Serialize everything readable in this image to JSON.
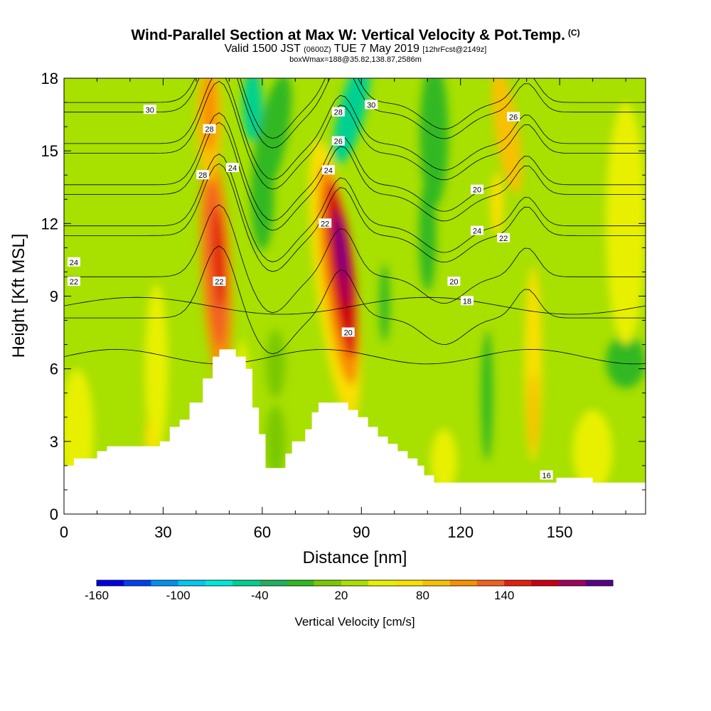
{
  "titles": {
    "main": "Wind-Parallel Section at Max W: Vertical Velocity & Pot.Temp.",
    "main_note": "(C)",
    "valid_a": "Valid 1500 JST",
    "valid_b": "(0600Z)",
    "valid_c": "TUE 7 May 2019",
    "valid_d": "[12hrFcst@2149z]",
    "box": "boxWmax=188@35.82,138.87,2586m"
  },
  "colorbar": {
    "label": "Vertical Velocity [cm/s]",
    "colors": [
      "#0000e0",
      "#0040f0",
      "#0090f0",
      "#00c8f0",
      "#00e8d8",
      "#00d090",
      "#20b060",
      "#30b820",
      "#7ac800",
      "#a8e000",
      "#e8f000",
      "#f8e000",
      "#f8c000",
      "#f89000",
      "#f06020",
      "#e02010",
      "#c80010",
      "#a00060",
      "#5a008a"
    ],
    "tick_labels": [
      "-160",
      "-100",
      "-40",
      "20",
      "80",
      "140"
    ]
  },
  "chart_data": {
    "type": "heatmap",
    "xlabel": "Distance [nm]",
    "ylabel": "Height [Kft MSL]",
    "xlim": [
      0,
      176
    ],
    "ylim": [
      0,
      18
    ],
    "xticks": [
      0,
      30,
      60,
      90,
      120,
      150
    ],
    "yticks": [
      0,
      3,
      6,
      9,
      12,
      15,
      18
    ],
    "terrain": [
      [
        0,
        2.0
      ],
      [
        3,
        2.3
      ],
      [
        10,
        2.6
      ],
      [
        13,
        2.8
      ],
      [
        29,
        3.0
      ],
      [
        32,
        3.6
      ],
      [
        35,
        3.9
      ],
      [
        38,
        4.6
      ],
      [
        42,
        5.6
      ],
      [
        45,
        6.5
      ],
      [
        47,
        6.8
      ],
      [
        52,
        6.5
      ],
      [
        55,
        6.0
      ],
      [
        57,
        4.4
      ],
      [
        59,
        3.3
      ],
      [
        61,
        1.9
      ],
      [
        64,
        1.9
      ],
      [
        67,
        2.5
      ],
      [
        69,
        3.0
      ],
      [
        73,
        3.5
      ],
      [
        75,
        4.2
      ],
      [
        77,
        4.6
      ],
      [
        83,
        4.6
      ],
      [
        86,
        4.3
      ],
      [
        89,
        4.0
      ],
      [
        92,
        3.6
      ],
      [
        95,
        3.2
      ],
      [
        98,
        2.9
      ],
      [
        101,
        2.6
      ],
      [
        104,
        2.3
      ],
      [
        107,
        2.0
      ],
      [
        109,
        1.6
      ],
      [
        112,
        1.3
      ],
      [
        140,
        1.3
      ],
      [
        149,
        1.5
      ],
      [
        157,
        1.5
      ],
      [
        160,
        1.3
      ],
      [
        176,
        1.3
      ]
    ],
    "theta_contours": [
      {
        "level": 16,
        "labels": [
          {
            "x": 146,
            "y": 1.6
          }
        ]
      },
      {
        "level": 18,
        "labels": [
          {
            "x": 122,
            "y": 8.8
          }
        ]
      },
      {
        "level": 20,
        "labels": [
          {
            "x": 86,
            "y": 7.5
          },
          {
            "x": 118,
            "y": 9.6
          },
          {
            "x": 125,
            "y": 13.4
          }
        ]
      },
      {
        "level": 22,
        "labels": [
          {
            "x": 3,
            "y": 9.6
          },
          {
            "x": 47,
            "y": 9.6
          },
          {
            "x": 79,
            "y": 12.0
          },
          {
            "x": 133,
            "y": 11.4
          }
        ]
      },
      {
        "level": 24,
        "labels": [
          {
            "x": 3,
            "y": 10.4
          },
          {
            "x": 51,
            "y": 14.3
          },
          {
            "x": 80,
            "y": 14.2
          },
          {
            "x": 125,
            "y": 11.7
          }
        ]
      },
      {
        "level": 26,
        "labels": [
          {
            "x": 83,
            "y": 15.4
          },
          {
            "x": 136,
            "y": 16.4
          }
        ]
      },
      {
        "level": 28,
        "labels": [
          {
            "x": 42,
            "y": 14.0
          },
          {
            "x": 44,
            "y": 15.9
          },
          {
            "x": 83,
            "y": 16.6
          }
        ]
      },
      {
        "level": 30,
        "labels": [
          {
            "x": 26,
            "y": 16.7
          },
          {
            "x": 93,
            "y": 16.9
          }
        ]
      }
    ]
  }
}
